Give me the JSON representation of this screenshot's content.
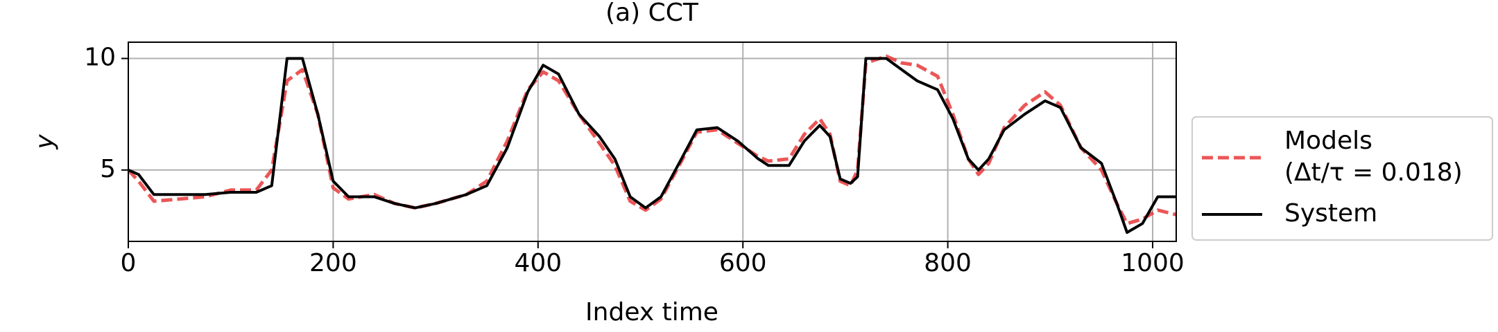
{
  "chart_data": {
    "type": "line",
    "title": "(a) CCT",
    "x_label": "Index time",
    "y_label": "y",
    "x": [
      0,
      10,
      25,
      50,
      75,
      100,
      125,
      140,
      155,
      170,
      185,
      200,
      215,
      240,
      260,
      280,
      300,
      330,
      350,
      370,
      390,
      405,
      420,
      440,
      460,
      475,
      490,
      505,
      520,
      540,
      555,
      575,
      595,
      615,
      625,
      645,
      660,
      675,
      685,
      695,
      705,
      712,
      720,
      740,
      755,
      770,
      790,
      805,
      820,
      830,
      840,
      855,
      875,
      895,
      910,
      930,
      950,
      965,
      975,
      990,
      1005,
      1023
    ],
    "series": [
      {
        "name": "Models\n(Δt/τ = 0.018)",
        "color": "#e8383a",
        "dashed": true,
        "values": [
          5.0,
          4.5,
          3.6,
          3.7,
          3.8,
          4.1,
          4.1,
          5.0,
          9.0,
          9.5,
          7.5,
          4.2,
          3.7,
          3.9,
          3.5,
          3.3,
          3.5,
          3.9,
          4.5,
          6.3,
          8.6,
          9.4,
          9.0,
          7.5,
          6.2,
          5.2,
          3.6,
          3.2,
          3.7,
          5.4,
          6.7,
          6.8,
          6.2,
          5.6,
          5.4,
          5.5,
          6.6,
          7.3,
          6.6,
          4.5,
          4.3,
          5.0,
          9.8,
          10.1,
          9.8,
          9.7,
          9.2,
          7.5,
          5.5,
          4.8,
          5.3,
          6.9,
          7.9,
          8.5,
          7.9,
          6.0,
          5.0,
          3.5,
          2.6,
          2.8,
          3.2,
          3.0
        ]
      },
      {
        "name": "System",
        "color": "#000000",
        "dashed": false,
        "values": [
          5.0,
          4.8,
          3.9,
          3.9,
          3.9,
          4.0,
          4.0,
          4.3,
          10.0,
          10.0,
          7.5,
          4.5,
          3.8,
          3.8,
          3.5,
          3.3,
          3.5,
          3.9,
          4.3,
          6.0,
          8.5,
          9.7,
          9.3,
          7.5,
          6.5,
          5.5,
          3.8,
          3.3,
          3.8,
          5.5,
          6.8,
          6.9,
          6.3,
          5.5,
          5.2,
          5.2,
          6.3,
          7.0,
          6.5,
          4.6,
          4.4,
          4.7,
          10.0,
          10.0,
          9.5,
          9.0,
          8.6,
          7.3,
          5.5,
          5.0,
          5.5,
          6.8,
          7.5,
          8.1,
          7.8,
          6.0,
          5.3,
          3.5,
          2.2,
          2.6,
          3.8,
          3.8
        ]
      }
    ],
    "xlim": [
      0,
      1023
    ],
    "ylim": [
      1.8,
      10.73
    ],
    "xticks": [
      0,
      200,
      400,
      600,
      800,
      1000
    ],
    "yticks": [
      5,
      10
    ],
    "grid": true,
    "legend": "outside right"
  }
}
